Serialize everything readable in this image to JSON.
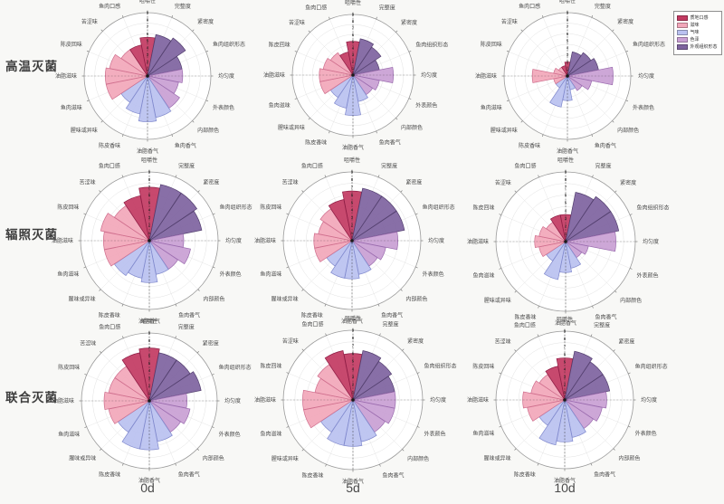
{
  "rows": [
    {
      "label": "高温灭菌"
    },
    {
      "label": "辐照灭菌"
    },
    {
      "label": "联合灭菌"
    }
  ],
  "columns": [
    {
      "label": "0d"
    },
    {
      "label": "5d"
    },
    {
      "label": "10d"
    }
  ],
  "legend": {
    "items": [
      {
        "label": "质地口感",
        "color": "#c23a62"
      },
      {
        "label": "滋味",
        "color": "#f2a7ba"
      },
      {
        "label": "气味",
        "color": "#bac1f0"
      },
      {
        "label": "色泽",
        "color": "#c99fd4"
      },
      {
        "label": "外观组织形态",
        "color": "#7e639f"
      }
    ]
  },
  "chart_data": {
    "type": "bar",
    "subtype": "polar-rose-sensory-radar",
    "layout": "3x3 grid; rows = sterilization method, columns = storage day",
    "radial_range": [
      0,
      9
    ],
    "radial_ticks": [
      1,
      2,
      3,
      4,
      5,
      6,
      7,
      8,
      9
    ],
    "categories": [
      "咀嚼性",
      "完整度",
      "紧密度",
      "鱼肉组织形态",
      "均匀度",
      "外表颜色",
      "内部颜色",
      "鱼肉香气",
      "油脂香气",
      "陈皮香味",
      "腥味或异味",
      "鱼肉滋味",
      "油脂滋味",
      "陈皮回味",
      "苦涩味",
      "鱼肉口感"
    ],
    "category_groups": [
      "质地口感",
      "外观组织形态",
      "外观组织形态",
      "外观组织形态",
      "色泽",
      "色泽",
      "色泽",
      "气味",
      "气味",
      "气味",
      "气味",
      "滋味",
      "滋味",
      "滋味",
      "滋味",
      "质地口感"
    ],
    "group_colors": {
      "质地口感": {
        "fill": "#c23a62",
        "edge": "#8e1d45"
      },
      "滋味": {
        "fill": "#f2a7ba",
        "edge": "#cf6e8d"
      },
      "气味": {
        "fill": "#bac1f0",
        "edge": "#8089cd"
      },
      "色泽": {
        "fill": "#c99fd4",
        "edge": "#9a6bae"
      },
      "外观组织形态": {
        "fill": "#7e639f",
        "edge": "#533f6e"
      }
    },
    "charts": [
      {
        "sterilization": "高温灭菌",
        "day": "0d",
        "values": [
          5.5,
          6,
          6.5,
          5,
          5,
          4.5,
          5.5,
          6,
          6.5,
          5.5,
          4.5,
          6,
          6,
          5.5,
          4.5,
          4.5
        ]
      },
      {
        "sterilization": "高温灭菌",
        "day": "5d",
        "values": [
          5,
          5.5,
          5,
          4,
          6,
          4,
          3.5,
          4,
          6,
          5,
          4,
          5,
          5,
          4.5,
          4,
          3.5
        ]
      },
      {
        "sterilization": "高温灭菌",
        "day": "10d",
        "values": [
          2,
          3.5,
          4,
          4.5,
          6.5,
          3.5,
          2.5,
          2,
          3.5,
          4.5,
          2,
          2,
          5,
          2,
          1.5,
          1.5
        ]
      },
      {
        "sterilization": "辐照灭菌",
        "day": "0d",
        "values": [
          7,
          7.5,
          7.5,
          7,
          4.5,
          5.5,
          4.5,
          4.5,
          5.5,
          5,
          5.5,
          6,
          6,
          6.5,
          5.5,
          6
        ]
      },
      {
        "sterilization": "辐照灭菌",
        "day": "5d",
        "values": [
          6.5,
          7,
          7,
          7,
          6,
          4.5,
          4,
          4.5,
          5,
          5,
          4,
          5,
          5,
          4.5,
          5,
          5.5
        ]
      },
      {
        "sterilization": "辐照灭菌",
        "day": "10d",
        "values": [
          3.5,
          6.5,
          7,
          7,
          6.5,
          3,
          2.5,
          3.5,
          4,
          5,
          3,
          3.5,
          4,
          3.5,
          3,
          3.5
        ]
      },
      {
        "sterilization": "联合灭菌",
        "day": "0d",
        "values": [
          7,
          6.5,
          6.5,
          7,
          5,
          5.5,
          5,
          5.5,
          6.5,
          6.5,
          5,
          5.5,
          6,
          5.5,
          5.5,
          6.5
        ]
      },
      {
        "sterilization": "联合灭菌",
        "day": "5d",
        "values": [
          6,
          6.5,
          6,
          5.5,
          5.5,
          5.5,
          5,
          5.5,
          6,
          6,
          5,
          6.5,
          6.5,
          5,
          5.5,
          6.5
        ]
      },
      {
        "sterilization": "联合灭菌",
        "day": "10d",
        "values": [
          5.5,
          6.5,
          6,
          6,
          5.5,
          5,
          4.5,
          5,
          5.5,
          6,
          4,
          5,
          5.5,
          4.5,
          4,
          4.5
        ]
      }
    ]
  }
}
